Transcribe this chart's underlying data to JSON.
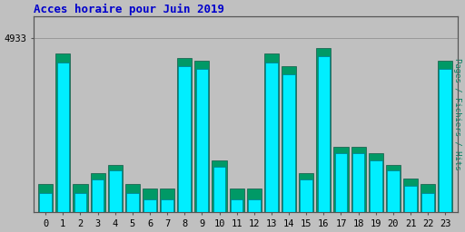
{
  "title": "Acces horaire pour Juin 2019",
  "ylabel_right": "Pages / Fichiers / Hits",
  "background_color": "#c0c0c0",
  "bar_color_cyan": "#00eeff",
  "bar_color_teal": "#009966",
  "hours": [
    0,
    1,
    2,
    3,
    4,
    5,
    6,
    7,
    8,
    9,
    10,
    11,
    12,
    13,
    14,
    15,
    16,
    17,
    18,
    19,
    20,
    21,
    22,
    23
  ],
  "values_teal": [
    3820,
    4820,
    3820,
    3900,
    3960,
    3820,
    3780,
    3780,
    4780,
    4760,
    4000,
    3780,
    3780,
    4820,
    4720,
    3900,
    4860,
    4100,
    4100,
    4050,
    3960,
    3860,
    3820,
    4760
  ],
  "values_cyan": [
    3750,
    4750,
    3750,
    3850,
    3920,
    3750,
    3700,
    3700,
    4720,
    4700,
    3950,
    3700,
    3700,
    4750,
    4660,
    3850,
    4800,
    4050,
    4050,
    4000,
    3920,
    3800,
    3750,
    4700
  ],
  "ymax": 5100,
  "ymin": 3600,
  "ytick_val": 4933,
  "title_color": "#0000cc",
  "title_fontsize": 9,
  "axis_label_color": "#008060",
  "xlabel_fontsize": 7.5,
  "ylabel_fontsize": 7.5
}
